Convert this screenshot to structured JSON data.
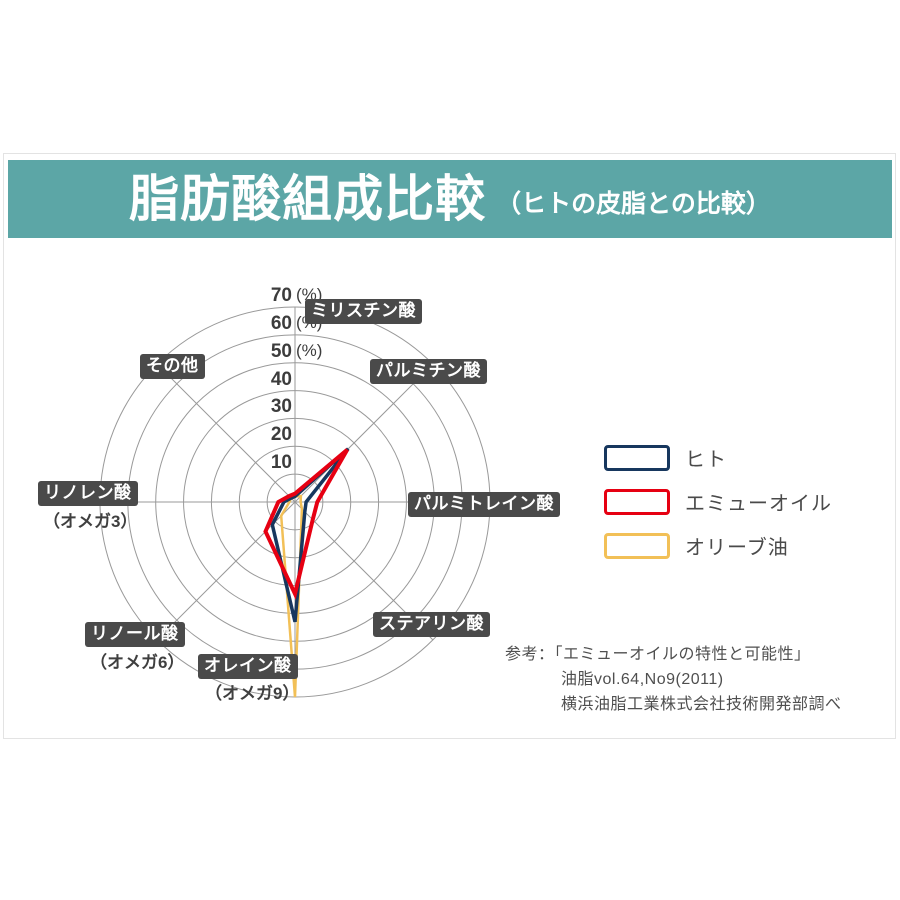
{
  "header": {
    "title": "脂肪酸組成比較",
    "subtitle": "（ヒトの皮脂との比較）",
    "bg_color": "#5ca6a6"
  },
  "chart_data": {
    "type": "radar",
    "unit": "%",
    "max": 70,
    "grid": true,
    "ticks": [
      {
        "value": 10,
        "suffix": ""
      },
      {
        "value": 20,
        "suffix": ""
      },
      {
        "value": 30,
        "suffix": ""
      },
      {
        "value": 40,
        "suffix": ""
      },
      {
        "value": 50,
        "suffix": "(%)"
      },
      {
        "value": 60,
        "suffix": "(%)"
      },
      {
        "value": 70,
        "suffix": "(%)"
      }
    ],
    "axes": [
      {
        "label": "ミリスチン酸",
        "sub": ""
      },
      {
        "label": "パルミチン酸",
        "sub": ""
      },
      {
        "label": "パルミトレイン酸",
        "sub": ""
      },
      {
        "label": "ステアリン酸",
        "sub": ""
      },
      {
        "label": "オレイン酸",
        "sub": "（オメガ9）"
      },
      {
        "label": "リノール酸",
        "sub": "（オメガ6）"
      },
      {
        "label": "リノレン酸",
        "sub": "（オメガ3）"
      },
      {
        "label": "その他",
        "sub": ""
      }
    ],
    "series": [
      {
        "name": "ヒト",
        "color": "#17375e",
        "width": 3.5,
        "values": [
          2,
          27,
          4,
          5,
          43,
          11.5,
          4,
          2
        ]
      },
      {
        "name": "エミューオイル",
        "color": "#e60012",
        "width": 4,
        "values": [
          3,
          26.5,
          8,
          9,
          33,
          15,
          6,
          3
        ]
      },
      {
        "name": "オリーブ油",
        "color": "#f2c057",
        "width": 2.5,
        "values": [
          2,
          3,
          2,
          3.5,
          70,
          7,
          2,
          2
        ]
      }
    ],
    "legend_position": "right",
    "grid_color": "#999999"
  },
  "reference": {
    "line1": "参考：「エミューオイルの特性と可能性」",
    "line2": "油脂vol.64,No9(2011)",
    "line3": "横浜油脂工業株式会社技術開発部調べ"
  }
}
